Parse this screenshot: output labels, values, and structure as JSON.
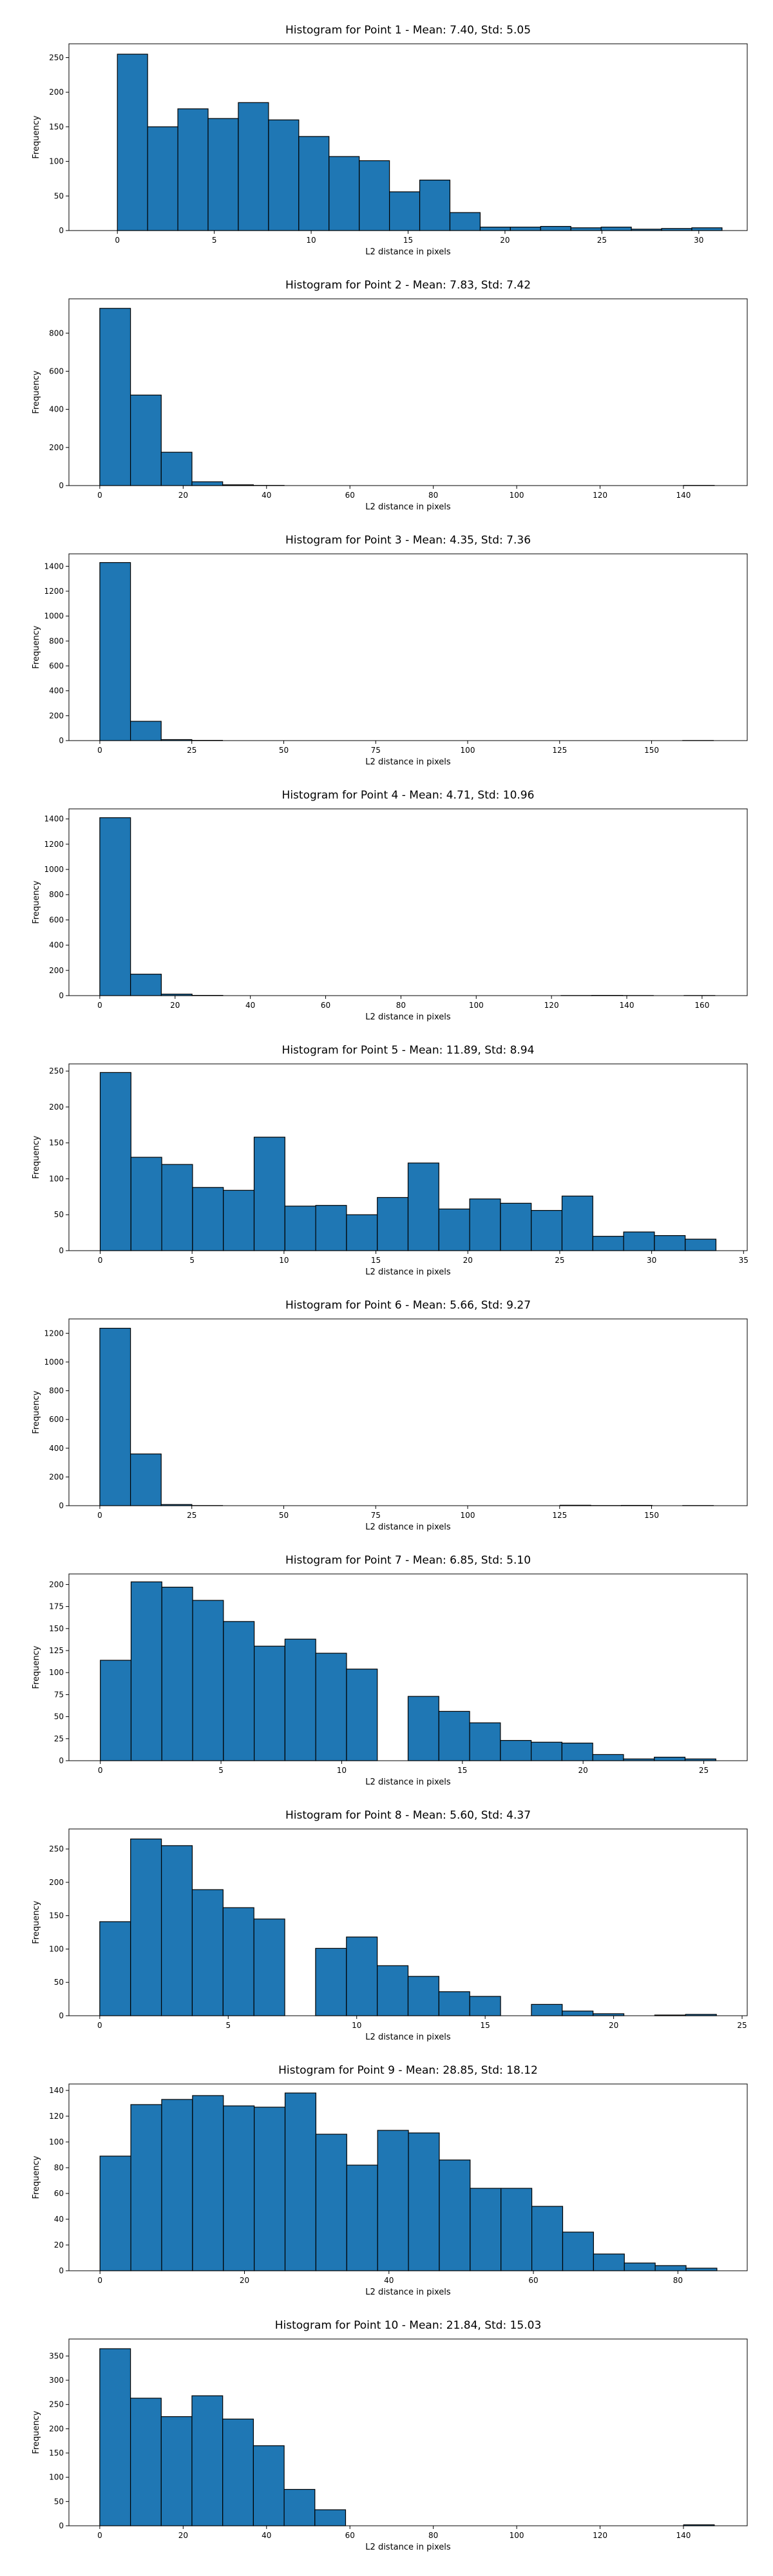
{
  "style": {
    "bar_color": "#1f77b4",
    "edge_color": "#000000",
    "background": "#ffffff"
  },
  "chart_data": [
    {
      "type": "bar",
      "title": "Histogram for Point 1 - Mean: 7.40, Std: 5.05",
      "xlabel": "L2 distance in pixels",
      "ylabel": "Frequency",
      "xlim": [
        -2.5,
        32.5
      ],
      "ylim": [
        0,
        270
      ],
      "xticks": [
        0,
        5,
        10,
        15,
        20,
        25,
        30
      ],
      "yticks": [
        0,
        50,
        100,
        150,
        200,
        250
      ],
      "bin_start": 0,
      "bin_width": 1.56,
      "values": [
        255,
        150,
        176,
        162,
        185,
        160,
        136,
        107,
        101,
        56,
        73,
        26,
        5,
        5,
        6,
        4,
        5,
        2,
        3,
        4
      ]
    },
    {
      "type": "bar",
      "title": "Histogram for Point 2 - Mean: 7.83, Std: 7.42",
      "xlabel": "L2 distance in pixels",
      "ylabel": "Frequency",
      "xlim": [
        -7.4,
        155.3
      ],
      "ylim": [
        0,
        980
      ],
      "xticks": [
        0,
        20,
        40,
        60,
        80,
        100,
        120,
        140
      ],
      "yticks": [
        0,
        200,
        400,
        600,
        800
      ],
      "bin_start": 0,
      "bin_width": 7.37,
      "values": [
        930,
        475,
        175,
        20,
        4,
        1,
        0,
        0,
        0,
        0,
        0,
        0,
        0,
        0,
        0,
        0,
        0,
        0,
        0,
        1
      ]
    },
    {
      "type": "bar",
      "title": "Histogram for Point 3 - Mean: 4.35, Std: 7.36",
      "xlabel": "L2 distance in pixels",
      "ylabel": "Frequency",
      "xlim": [
        -8.4,
        176.0
      ],
      "ylim": [
        0,
        1500
      ],
      "xticks": [
        0,
        25,
        50,
        75,
        100,
        125,
        150
      ],
      "yticks": [
        0,
        200,
        400,
        600,
        800,
        1000,
        1200,
        1400
      ],
      "bin_start": 0,
      "bin_width": 8.34,
      "values": [
        1430,
        155,
        8,
        2,
        0,
        0,
        0,
        0,
        0,
        0,
        0,
        0,
        0,
        0,
        0,
        0,
        0,
        0,
        0,
        1
      ]
    },
    {
      "type": "bar",
      "title": "Histogram for Point 4 - Mean: 4.71, Std: 10.96",
      "xlabel": "L2 distance in pixels",
      "ylabel": "Frequency",
      "xlim": [
        -8.2,
        172.0
      ],
      "ylim": [
        0,
        1480
      ],
      "xticks": [
        0,
        20,
        40,
        60,
        80,
        100,
        120,
        140,
        160
      ],
      "yticks": [
        0,
        200,
        400,
        600,
        800,
        1000,
        1200,
        1400
      ],
      "bin_start": 0,
      "bin_width": 8.17,
      "values": [
        1410,
        170,
        12,
        2,
        0,
        0,
        0,
        0,
        0,
        0,
        0,
        0,
        0,
        0,
        0,
        1,
        2,
        1,
        0,
        1
      ]
    },
    {
      "type": "bar",
      "title": "Histogram for Point 5 - Mean: 11.89, Std: 8.94",
      "xlabel": "L2 distance in pixels",
      "ylabel": "Frequency",
      "xlim": [
        -1.7,
        35.2
      ],
      "ylim": [
        0,
        260
      ],
      "xticks": [
        0,
        5,
        10,
        15,
        20,
        25,
        30,
        35
      ],
      "yticks": [
        0,
        50,
        100,
        150,
        200,
        250
      ],
      "bin_start": 0,
      "bin_width": 1.675,
      "values": [
        248,
        130,
        120,
        88,
        84,
        158,
        62,
        63,
        50,
        74,
        122,
        58,
        72,
        66,
        56,
        76,
        20,
        26,
        21,
        16
      ]
    },
    {
      "type": "bar",
      "title": "Histogram for Point 6 - Mean: 5.66, Std: 9.27",
      "xlabel": "L2 distance in pixels",
      "ylabel": "Frequency",
      "xlim": [
        -8.4,
        176.0
      ],
      "ylim": [
        0,
        1300
      ],
      "xticks": [
        0,
        25,
        50,
        75,
        100,
        125,
        150
      ],
      "yticks": [
        0,
        200,
        400,
        600,
        800,
        1000,
        1200
      ],
      "bin_start": 0,
      "bin_width": 8.34,
      "values": [
        1235,
        360,
        8,
        1,
        0,
        0,
        0,
        0,
        0,
        0,
        0,
        0,
        0,
        0,
        0,
        3,
        1,
        2,
        0,
        1
      ]
    },
    {
      "type": "bar",
      "title": "Histogram for Point 7 - Mean: 6.85, Std: 5.10",
      "xlabel": "L2 distance in pixels",
      "ylabel": "Frequency",
      "xlim": [
        -1.3,
        26.8
      ],
      "ylim": [
        0,
        212
      ],
      "xticks": [
        0,
        5,
        10,
        15,
        20,
        25
      ],
      "yticks": [
        0,
        25,
        50,
        75,
        100,
        125,
        150,
        175,
        200
      ],
      "bin_start": 0,
      "bin_width": 1.275,
      "values": [
        114,
        203,
        197,
        182,
        158,
        130,
        138,
        122,
        104,
        0,
        73,
        56,
        43,
        23,
        21,
        20,
        7,
        2,
        4,
        2
      ]
    },
    {
      "type": "bar",
      "title": "Histogram for Point 8 - Mean: 5.60, Std: 4.37",
      "xlabel": "L2 distance in pixels",
      "ylabel": "Frequency",
      "xlim": [
        -1.2,
        25.2
      ],
      "ylim": [
        0,
        280
      ],
      "xticks": [
        0,
        5,
        10,
        15,
        20,
        25
      ],
      "yticks": [
        0,
        50,
        100,
        150,
        200,
        250
      ],
      "bin_start": 0,
      "bin_width": 1.2,
      "values": [
        141,
        265,
        255,
        189,
        162,
        145,
        0,
        101,
        118,
        75,
        59,
        36,
        29,
        0,
        17,
        7,
        3,
        0,
        1,
        2
      ]
    },
    {
      "type": "bar",
      "title": "Histogram for Point 9 - Mean: 28.85, Std: 18.12",
      "xlabel": "L2 distance in pixels",
      "ylabel": "Frequency",
      "xlim": [
        -4.3,
        89.6
      ],
      "ylim": [
        0,
        145
      ],
      "xticks": [
        0,
        20,
        40,
        60,
        80
      ],
      "yticks": [
        0,
        20,
        40,
        60,
        80,
        100,
        120,
        140
      ],
      "bin_start": 0,
      "bin_width": 4.27,
      "values": [
        89,
        129,
        133,
        136,
        128,
        127,
        138,
        106,
        82,
        109,
        107,
        86,
        64,
        64,
        50,
        30,
        13,
        6,
        4,
        2
      ]
    },
    {
      "type": "bar",
      "title": "Histogram for Point 10 - Mean: 21.84, Std: 15.03",
      "xlabel": "L2 distance in pixels",
      "ylabel": "Frequency",
      "xlim": [
        -7.4,
        155.3
      ],
      "ylim": [
        0,
        385
      ],
      "xticks": [
        0,
        20,
        40,
        60,
        80,
        100,
        120,
        140
      ],
      "yticks": [
        0,
        50,
        100,
        150,
        200,
        250,
        300,
        350
      ],
      "bin_start": 0,
      "bin_width": 7.37,
      "values": [
        365,
        263,
        225,
        268,
        220,
        165,
        75,
        33,
        0,
        0,
        0,
        0,
        0,
        0,
        0,
        0,
        0,
        0,
        0,
        2
      ]
    }
  ]
}
